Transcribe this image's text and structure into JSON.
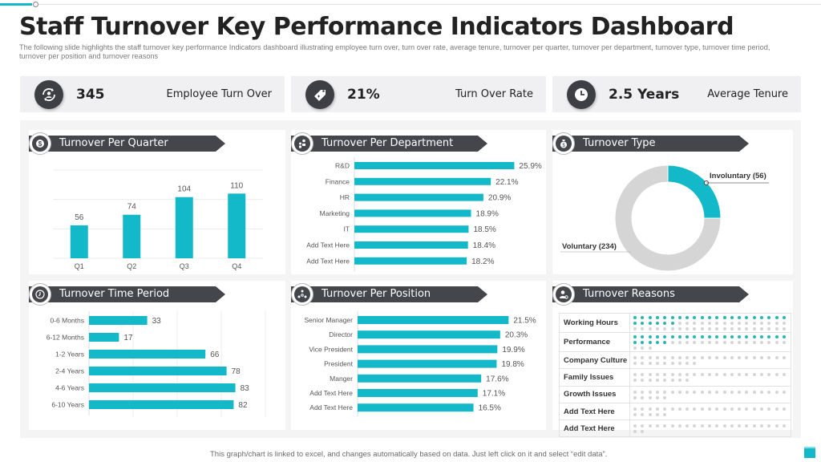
{
  "title": "Staff Turnover Key Performance Indicators Dashboard",
  "subtitle": "The following slide highlights the staff turnover key performance Indicators dashboard illustrating employee turn over, turn over rate, average tenure, turnover per quarter, turnover per department, turnover type, turnover time period, turnover per position and turnover reasons",
  "colors": {
    "accent": "#13b9c8",
    "dark": "#45464c",
    "muted": "#d5d5d5",
    "reason_dot": "#2bb5b0"
  },
  "kpis": [
    {
      "icon": "refresh-user-icon",
      "value": "345",
      "label": "Employee Turn Over"
    },
    {
      "icon": "tag-icon",
      "value": "21%",
      "label": "Turn Over Rate"
    },
    {
      "icon": "clock-icon",
      "value": "2.5 Years",
      "label": "Average Tenure"
    }
  ],
  "sections": {
    "quarter": {
      "title": "Turnover Per Quarter",
      "icon": "dollar-cycle-icon"
    },
    "department": {
      "title": "Turnover Per Department",
      "icon": "people-transfer-icon"
    },
    "type": {
      "title": "Turnover Type",
      "icon": "money-bag-icon"
    },
    "time_period": {
      "title": "Turnover Time Period",
      "icon": "clock-icon"
    },
    "position": {
      "title": "Turnover Per Position",
      "icon": "org-chart-icon"
    },
    "reasons": {
      "title": "Turnover Reasons",
      "icon": "user-gear-icon"
    }
  },
  "chart_data": [
    {
      "id": "quarter",
      "type": "bar",
      "title": "Turnover Per Quarter",
      "categories": [
        "Q1",
        "Q2",
        "Q3",
        "Q4"
      ],
      "values": [
        56,
        74,
        104,
        110
      ],
      "ylim": [
        0,
        150
      ],
      "grid": true,
      "xlabel": "",
      "ylabel": ""
    },
    {
      "id": "department",
      "type": "bar",
      "orientation": "horizontal",
      "title": "Turnover Per Department",
      "categories": [
        "R&D",
        "Finance",
        "HR",
        "Marketing",
        "IT",
        "Add Text Here",
        "Add Text Here"
      ],
      "values": [
        25.9,
        22.1,
        20.9,
        18.9,
        18.5,
        18.4,
        18.2
      ],
      "value_labels": [
        "25.9%",
        "22.1%",
        "20.9%",
        "18.9%",
        "18.5%",
        "18.4%",
        "18.2%"
      ],
      "xlim": [
        0,
        30
      ]
    },
    {
      "id": "type",
      "type": "pie",
      "donut": true,
      "title": "Turnover Type",
      "slices": [
        {
          "name": "Involuntary",
          "value": 56,
          "label": "Involuntary  (56)",
          "color": "#13b9c8"
        },
        {
          "name": "Voluntary",
          "value": 234,
          "label": "Voluntary (234)",
          "color": "#d5d5d5"
        }
      ]
    },
    {
      "id": "time_period",
      "type": "bar",
      "orientation": "horizontal",
      "title": "Turnover Time Period",
      "categories": [
        "0-6 Months",
        "6-12 Months",
        "1-2 Years",
        "2-4 Years",
        "4-6 Years",
        "6-10 Years"
      ],
      "values": [
        33,
        17,
        66,
        78,
        83,
        82
      ],
      "value_labels": [
        "33",
        "17",
        "66",
        "78",
        "83",
        "82"
      ],
      "xlim": [
        0,
        100
      ],
      "grid": true
    },
    {
      "id": "position",
      "type": "bar",
      "orientation": "horizontal",
      "title": "Turnover Per Position",
      "categories": [
        "Senior Manager",
        "Director",
        "Vice President",
        "President",
        "Manger",
        "Add Text Here",
        "Add Text Here"
      ],
      "values": [
        21.5,
        20.3,
        19.9,
        19.8,
        17.6,
        17.1,
        16.5
      ],
      "value_labels": [
        "21.5%",
        "20.3%",
        "19.9%",
        "19.8%",
        "17.6%",
        "17.1%",
        "16.5%"
      ],
      "xlim": [
        0,
        25
      ]
    },
    {
      "id": "reasons",
      "type": "table",
      "title": "Turnover Reasons",
      "columns_per_row": 21,
      "rows": [
        {
          "label": "Working Hours",
          "highlighted": 27,
          "total": 63
        },
        {
          "label": "Performance",
          "highlighted": 26,
          "total": 45
        },
        {
          "label": "Company Culture",
          "highlighted": 0,
          "total": 30
        },
        {
          "label": "Family Issues",
          "highlighted": 0,
          "total": 29
        },
        {
          "label": "Growth Issues",
          "highlighted": 0,
          "total": 26
        },
        {
          "label": "Add Text Here",
          "highlighted": 0,
          "total": 26
        },
        {
          "label": "Add Text Here",
          "highlighted": 0,
          "total": 23
        }
      ]
    }
  ],
  "footer": "This graph/chart is linked to excel,  and changes automatically based on data. Just left click on it and select “edit data”."
}
